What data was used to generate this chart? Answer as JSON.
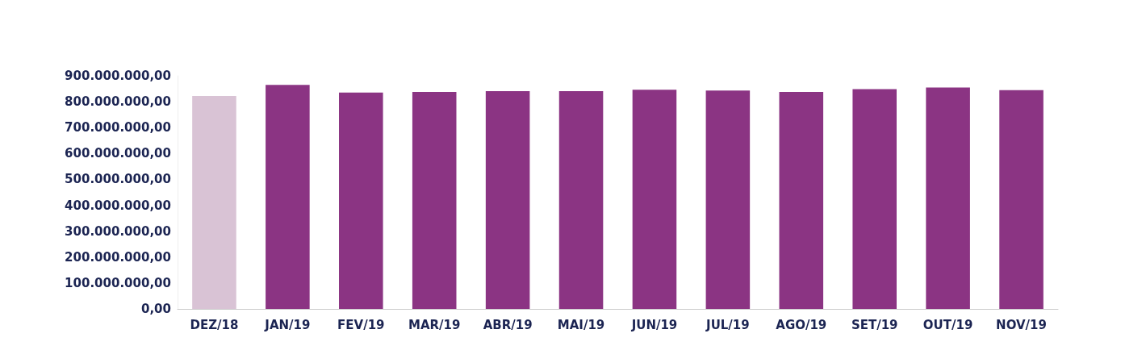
{
  "chart_data": {
    "type": "bar",
    "categories": [
      "DEZ/18",
      "JAN/19",
      "FEV/19",
      "MAR/19",
      "ABR/19",
      "MAI/19",
      "JUN/19",
      "JUL/19",
      "AGO/19",
      "SET/19",
      "OUT/19",
      "NOV/19"
    ],
    "values": [
      822000000,
      865000000,
      835000000,
      838000000,
      841000000,
      841000000,
      846000000,
      843000000,
      838000000,
      849000000,
      855000000,
      845000000
    ],
    "colors": [
      "#d9c3d5",
      "#8b3483",
      "#8b3483",
      "#8b3483",
      "#8b3483",
      "#8b3483",
      "#8b3483",
      "#8b3483",
      "#8b3483",
      "#8b3483",
      "#8b3483",
      "#8b3483"
    ],
    "ylim": [
      0,
      900000000
    ],
    "yticks": [
      {
        "value": 0,
        "label": "0,00"
      },
      {
        "value": 100000000,
        "label": "100.000.000,00"
      },
      {
        "value": 200000000,
        "label": "200.000.000,00"
      },
      {
        "value": 300000000,
        "label": "300.000.000,00"
      },
      {
        "value": 400000000,
        "label": "400.000.000,00"
      },
      {
        "value": 500000000,
        "label": "500.000.000,00"
      },
      {
        "value": 600000000,
        "label": "600.000.000,00"
      },
      {
        "value": 700000000,
        "label": "700.000.000,00"
      },
      {
        "value": 800000000,
        "label": "800.000.000,00"
      },
      {
        "value": 900000000,
        "label": "900.000.000,00"
      }
    ],
    "grid": false
  }
}
